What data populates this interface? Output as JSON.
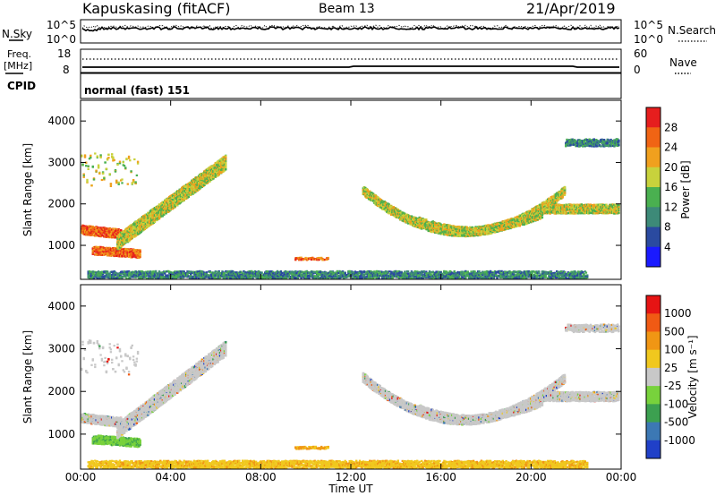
{
  "header": {
    "station": "Kapuskasing (fitACF)",
    "beam": "Beam 13",
    "date": "21/Apr/2019"
  },
  "noise_panel": {
    "left_label": "N.Sky",
    "right_label": "N.Search",
    "left_ticks": [
      "10^5",
      "10^0"
    ],
    "right_ticks": [
      "10^5",
      "10^0"
    ]
  },
  "freq_panel": {
    "left_label_1": "Freq.",
    "left_label_2": "[MHz]",
    "right_label": "Nave",
    "left_ticks": [
      "18",
      "8"
    ],
    "right_ticks": [
      "60",
      "0"
    ]
  },
  "cpid": {
    "label": "CPID",
    "value": "normal (fast) 151"
  },
  "chart_data": [
    {
      "type": "heatmap",
      "name": "power",
      "ylabel": "Slant Range [km]",
      "ylim": [
        180,
        4500
      ],
      "y_ticks": [
        "1000",
        "2000",
        "3000",
        "4000"
      ],
      "colorbar_label": "Power [dB]",
      "colorbar_ticks": [
        "4",
        "8",
        "12",
        "16",
        "20",
        "24",
        "28"
      ],
      "colors": [
        "#1a1aff",
        "#2a4aa0",
        "#3d8a78",
        "#4ab050",
        "#c8d23c",
        "#f0a01e",
        "#f06414",
        "#e61e1e"
      ]
    },
    {
      "type": "heatmap",
      "name": "velocity",
      "ylabel": "Slant Range [km]",
      "ylim": [
        180,
        4500
      ],
      "y_ticks": [
        "1000",
        "2000",
        "3000",
        "4000"
      ],
      "colorbar_label": "Velocity [m s⁻¹]",
      "colorbar_ticks": [
        "1000",
        "500",
        "100",
        "25",
        "-25",
        "-100",
        "-500",
        "-1000"
      ],
      "colors": [
        "#2040c8",
        "#3c78b4",
        "#3ca050",
        "#78d23c",
        "#c8c8c8",
        "#f0c81e",
        "#f09614",
        "#f05a14",
        "#e61414"
      ]
    }
  ],
  "x_axis": {
    "label": "Time UT",
    "ticks": [
      "00:00",
      "04:00",
      "08:00",
      "12:00",
      "16:00",
      "20:00",
      "00:00"
    ]
  }
}
